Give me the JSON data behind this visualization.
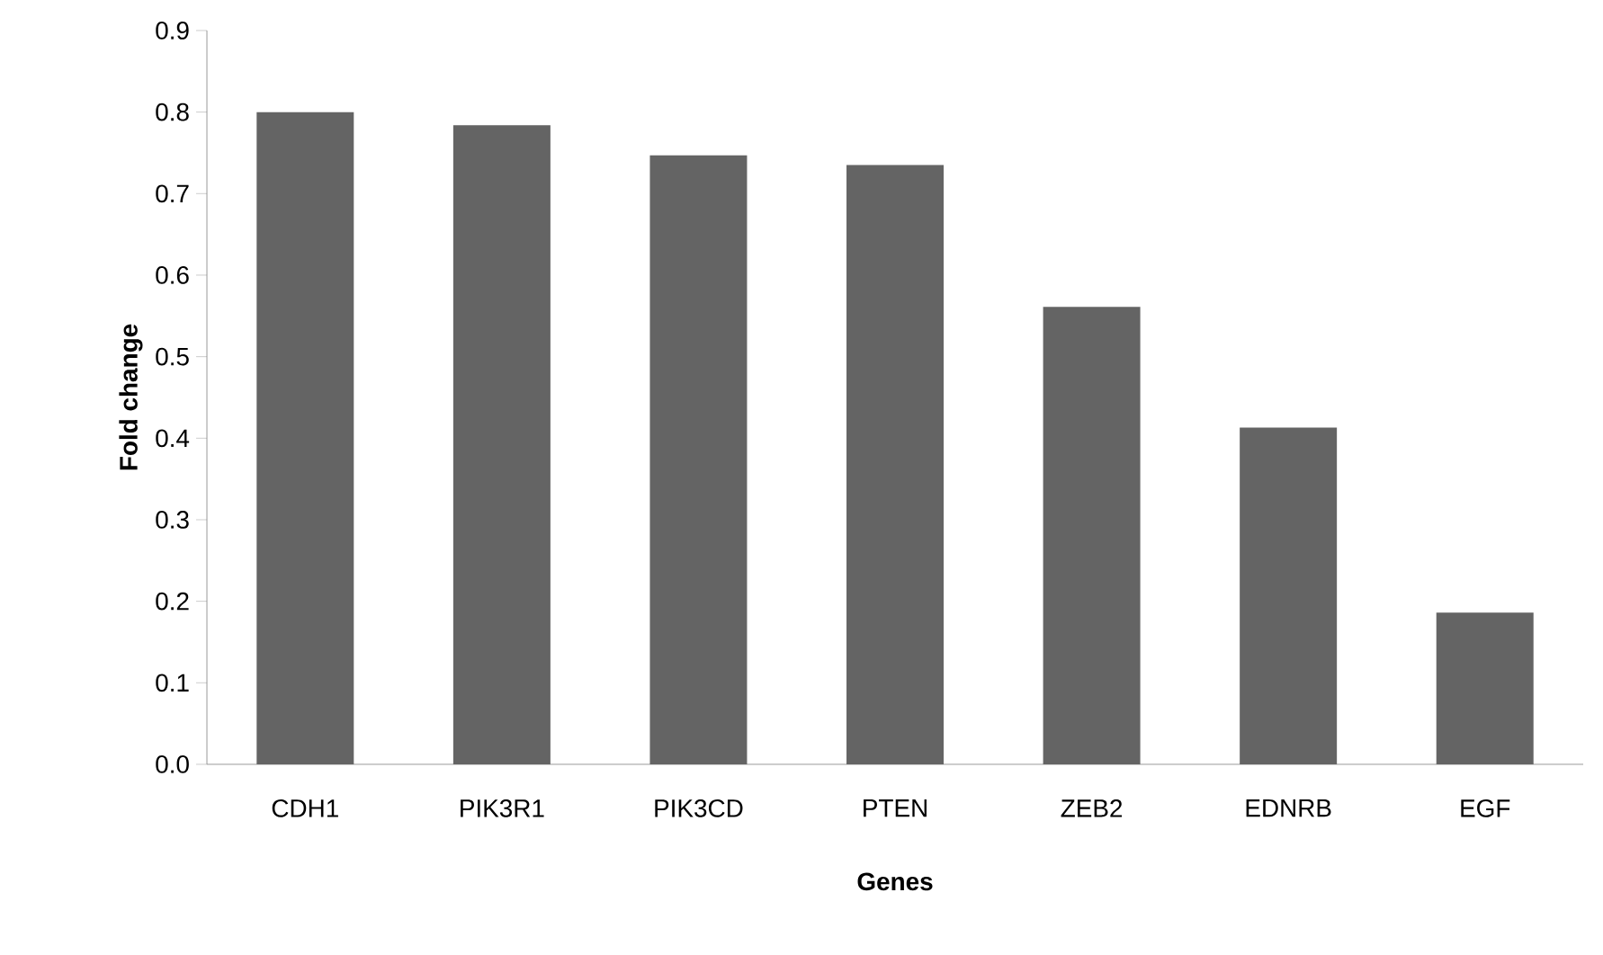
{
  "chart_data": {
    "type": "bar",
    "xlabel": "Genes",
    "ylabel": "Fold change",
    "categories": [
      "CDH1",
      "PIK3R1",
      "PIK3CD",
      "PTEN",
      "ZEB2",
      "EDNRB",
      "EGF"
    ],
    "values": [
      0.8,
      0.784,
      0.747,
      0.735,
      0.561,
      0.413,
      0.186
    ],
    "color": "#646464",
    "ylim": [
      0,
      0.9
    ],
    "yticks": [
      {
        "value": 0,
        "label": "0.0"
      },
      0.1,
      0.2,
      0.3,
      0.4,
      0.5,
      0.6,
      0.7,
      0.8,
      0.9
    ],
    "grid": false
  }
}
